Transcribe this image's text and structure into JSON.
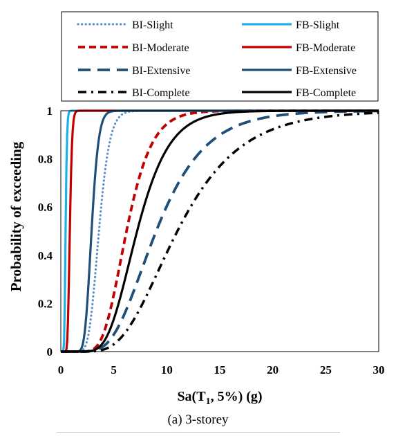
{
  "chart_data": {
    "type": "line",
    "xlabel": "Sa(T1, 5%) (g)",
    "xlabel_main": "Sa(T",
    "xlabel_sub": "1",
    "xlabel_tail": ", 5%) (g)",
    "ylabel": "Probability  of  exceeding",
    "xlim": [
      0,
      30
    ],
    "ylim": [
      0,
      1
    ],
    "xticks": [
      "0",
      "5",
      "10",
      "15",
      "20",
      "25",
      "30"
    ],
    "yticks": [
      "0",
      "0.2",
      "0.4",
      "0.6",
      "0.8",
      "1"
    ],
    "grid": false,
    "legend_position": "top",
    "series": [
      {
        "name": "BI-Slight",
        "median": 3.6,
        "beta": 0.22,
        "color": "#5b8fc9",
        "dash": "dotted"
      },
      {
        "name": "FB-Slight",
        "median": 0.45,
        "beta": 0.22,
        "color": "#1fb0ea",
        "dash": "solid"
      },
      {
        "name": "BI-Moderate",
        "median": 6.2,
        "beta": 0.3,
        "color": "#c00000",
        "dash": "dashed"
      },
      {
        "name": "FB-Moderate",
        "median": 0.85,
        "beta": 0.2,
        "color": "#c00000",
        "dash": "solid"
      },
      {
        "name": "BI-Extensive",
        "median": 9.0,
        "beta": 0.4,
        "color": "#1f4e79",
        "dash": "longdash"
      },
      {
        "name": "FB-Extensive",
        "median": 2.9,
        "beta": 0.18,
        "color": "#1f4e79",
        "dash": "solid"
      },
      {
        "name": "BI-Complete",
        "median": 11.0,
        "beta": 0.42,
        "color": "#000000",
        "dash": "dashdot"
      },
      {
        "name": "FB-Complete",
        "median": 7.2,
        "beta": 0.33,
        "color": "#000000",
        "dash": "solid"
      }
    ]
  },
  "caption": "(a) 3-storey"
}
